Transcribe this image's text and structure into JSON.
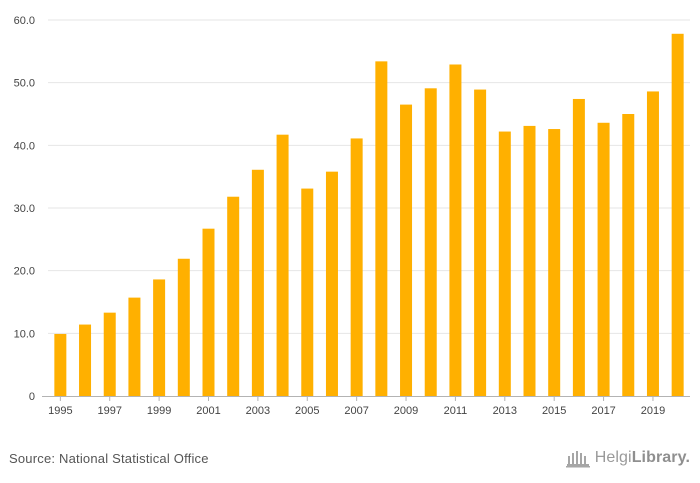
{
  "colors": {
    "bar": "#ffb000",
    "grid": "#e6e6e6",
    "axis": "#b3b3b3",
    "tick_text": "#444444"
  },
  "chart_data": {
    "type": "bar",
    "title": "",
    "xlabel": "",
    "ylabel": "",
    "categories": [
      "1995",
      "1996",
      "1997",
      "1998",
      "1999",
      "2000",
      "2001",
      "2002",
      "2003",
      "2004",
      "2005",
      "2006",
      "2007",
      "2008",
      "2009",
      "2010",
      "2011",
      "2012",
      "2013",
      "2014",
      "2015",
      "2016",
      "2017",
      "2018",
      "2019",
      "2020"
    ],
    "values": [
      9.9,
      11.4,
      13.3,
      15.7,
      18.6,
      21.9,
      26.7,
      31.8,
      36.1,
      41.7,
      33.1,
      35.8,
      41.1,
      53.4,
      46.5,
      49.1,
      52.9,
      48.9,
      42.2,
      43.1,
      42.6,
      47.4,
      43.6,
      45.0,
      48.6,
      57.8
    ],
    "x_tick_labels": [
      "1995",
      "1997",
      "1999",
      "2001",
      "2003",
      "2005",
      "2007",
      "2009",
      "2011",
      "2013",
      "2015",
      "2017",
      "2019"
    ],
    "y_ticks": [
      0,
      10,
      20,
      30,
      40,
      50,
      60
    ],
    "y_tick_labels": [
      "0",
      "10.0",
      "20.0",
      "30.0",
      "40.0",
      "50.0",
      "60.0"
    ],
    "ylim": [
      0,
      60
    ],
    "grid": true,
    "legend": "none"
  },
  "footer": {
    "source": "Source: National Statistical Office"
  },
  "brand": {
    "prefix": "Helgi",
    "suffix": "Library.",
    "icon": "library-building-icon"
  }
}
